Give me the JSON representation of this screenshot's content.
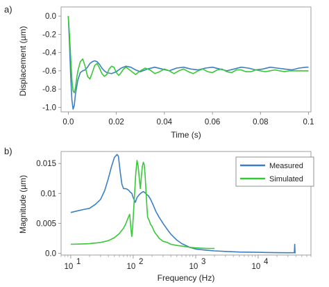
{
  "chart_data": [
    {
      "panel_label": "a)",
      "type": "line",
      "xlabel": "Time (s)",
      "ylabel": "Displacement (µm)",
      "xlim": [
        -0.003,
        0.101
      ],
      "ylim": [
        -1.05,
        0.1
      ],
      "xticks": [
        0.0,
        0.02,
        0.04,
        0.06,
        0.08,
        0.1
      ],
      "xtick_labels": [
        "0.0",
        "0.02",
        "0.04",
        "0.06",
        "0.08",
        "0.1"
      ],
      "yticks": [
        0.0,
        -0.2,
        -0.4,
        -0.6,
        -0.8,
        -1.0
      ],
      "ytick_labels": [
        "0.0",
        "-0.2",
        "-0.4",
        "-0.6",
        "-0.8",
        "-1.0"
      ],
      "grid": false,
      "series": [
        {
          "color": "#3a7fc4",
          "x": [
            0.0,
            0.0005,
            0.001,
            0.0015,
            0.002,
            0.0025,
            0.003,
            0.004,
            0.005,
            0.006,
            0.007,
            0.008,
            0.009,
            0.01,
            0.011,
            0.012,
            0.013,
            0.014,
            0.015,
            0.016,
            0.018,
            0.02,
            0.022,
            0.024,
            0.026,
            0.028,
            0.03,
            0.033,
            0.036,
            0.039,
            0.042,
            0.045,
            0.048,
            0.051,
            0.054,
            0.057,
            0.06,
            0.063,
            0.066,
            0.069,
            0.072,
            0.075,
            0.078,
            0.081,
            0.084,
            0.087,
            0.09,
            0.093,
            0.096,
            0.099,
            0.1
          ],
          "y": [
            0.0,
            -0.3,
            -0.65,
            -0.92,
            -1.02,
            -0.98,
            -0.85,
            -0.7,
            -0.62,
            -0.6,
            -0.59,
            -0.56,
            -0.52,
            -0.5,
            -0.49,
            -0.5,
            -0.53,
            -0.57,
            -0.6,
            -0.62,
            -0.63,
            -0.61,
            -0.57,
            -0.55,
            -0.56,
            -0.59,
            -0.61,
            -0.58,
            -0.56,
            -0.58,
            -0.6,
            -0.57,
            -0.56,
            -0.58,
            -0.59,
            -0.57,
            -0.56,
            -0.58,
            -0.6,
            -0.58,
            -0.56,
            -0.57,
            -0.59,
            -0.58,
            -0.56,
            -0.57,
            -0.58,
            -0.59,
            -0.57,
            -0.56,
            -0.56
          ]
        },
        {
          "color": "#36c836",
          "x": [
            0.0,
            0.0005,
            0.001,
            0.0015,
            0.002,
            0.0025,
            0.003,
            0.0035,
            0.004,
            0.005,
            0.006,
            0.007,
            0.008,
            0.009,
            0.01,
            0.011,
            0.012,
            0.013,
            0.014,
            0.015,
            0.016,
            0.017,
            0.018,
            0.019,
            0.02,
            0.021,
            0.022,
            0.023,
            0.024,
            0.026,
            0.028,
            0.03,
            0.032,
            0.034,
            0.036,
            0.038,
            0.04,
            0.042,
            0.044,
            0.046,
            0.048,
            0.05,
            0.052,
            0.054,
            0.056,
            0.058,
            0.06,
            0.062,
            0.064,
            0.066,
            0.068,
            0.07,
            0.072,
            0.074,
            0.076,
            0.078,
            0.08,
            0.082,
            0.084,
            0.086,
            0.088,
            0.09,
            0.092,
            0.094,
            0.096,
            0.098,
            0.1
          ],
          "y": [
            0.0,
            -0.2,
            -0.45,
            -0.7,
            -0.82,
            -0.84,
            -0.78,
            -0.68,
            -0.6,
            -0.5,
            -0.47,
            -0.55,
            -0.66,
            -0.69,
            -0.62,
            -0.54,
            -0.52,
            -0.57,
            -0.63,
            -0.66,
            -0.64,
            -0.58,
            -0.55,
            -0.56,
            -0.62,
            -0.65,
            -0.62,
            -0.58,
            -0.56,
            -0.6,
            -0.64,
            -0.6,
            -0.57,
            -0.59,
            -0.63,
            -0.61,
            -0.58,
            -0.6,
            -0.63,
            -0.6,
            -0.58,
            -0.61,
            -0.63,
            -0.6,
            -0.58,
            -0.61,
            -0.62,
            -0.59,
            -0.58,
            -0.61,
            -0.62,
            -0.59,
            -0.59,
            -0.61,
            -0.61,
            -0.59,
            -0.6,
            -0.61,
            -0.6,
            -0.59,
            -0.6,
            -0.61,
            -0.6,
            -0.6,
            -0.6,
            -0.6,
            -0.6
          ]
        }
      ]
    },
    {
      "panel_label": "b)",
      "type": "line",
      "xscale": "log",
      "xlabel": "Frequency (Hz)",
      "ylabel": "Magnitude (µm)",
      "xlim": [
        7,
        70000
      ],
      "ylim": [
        -0.0003,
        0.017
      ],
      "xticks": [
        10,
        100,
        1000,
        10000
      ],
      "xtick_labels": [
        "10",
        "10",
        "10",
        "10"
      ],
      "xtick_exponents": [
        "1",
        "2",
        "3",
        "4"
      ],
      "yticks": [
        0.015,
        0.01,
        0.005,
        0.0
      ],
      "ytick_labels": [
        "0.015",
        "0.01",
        "0.005",
        "0.0"
      ],
      "grid": false,
      "legend": {
        "position": "top-right",
        "entries": [
          {
            "label": "Measured",
            "color": "#3a7fc4"
          },
          {
            "label": "Simulated",
            "color": "#36c836"
          }
        ]
      },
      "series": [
        {
          "name": "Measured",
          "color": "#3a7fc4",
          "x": [
            10,
            13,
            16,
            20,
            25,
            30,
            35,
            40,
            45,
            50,
            55,
            58,
            62,
            66,
            70,
            75,
            80,
            85,
            90,
            95,
            100,
            108,
            115,
            125,
            135,
            145,
            155,
            165,
            175,
            190,
            210,
            230,
            260,
            300,
            350,
            400,
            500,
            600,
            800,
            1000,
            1500,
            2000,
            3000,
            5000,
            10000,
            20000,
            30000,
            38000,
            38500,
            39000,
            40000
          ],
          "y": [
            0.0068,
            0.0071,
            0.0073,
            0.0075,
            0.0082,
            0.009,
            0.0105,
            0.0125,
            0.0145,
            0.016,
            0.0165,
            0.0162,
            0.0135,
            0.0115,
            0.0108,
            0.0108,
            0.0107,
            0.0105,
            0.0102,
            0.01,
            0.0093,
            0.0085,
            0.0093,
            0.0098,
            0.0101,
            0.0103,
            0.0101,
            0.0098,
            0.0096,
            0.009,
            0.008,
            0.007,
            0.006,
            0.005,
            0.004,
            0.0032,
            0.0022,
            0.0016,
            0.001,
            0.0007,
            0.0005,
            0.0004,
            0.0003,
            0.0002,
            0.00015,
            0.0001,
            8e-05,
            8e-05,
            0.0015,
            8e-05,
            8e-05
          ]
        },
        {
          "name": "Simulated",
          "color": "#36c836",
          "x": [
            10,
            15,
            20,
            30,
            40,
            50,
            60,
            70,
            75,
            80,
            85,
            88,
            92,
            95,
            98,
            102,
            106,
            110,
            115,
            120,
            125,
            130,
            135,
            140,
            145,
            150,
            155,
            160,
            165,
            170,
            180,
            190,
            200,
            220,
            240,
            260,
            300,
            350,
            400,
            500,
            600,
            800,
            1000,
            1500,
            2000
          ],
          "y": [
            0.0015,
            0.00155,
            0.0016,
            0.0018,
            0.0021,
            0.0026,
            0.0033,
            0.0042,
            0.0048,
            0.0055,
            0.0062,
            0.0065,
            0.004,
            0.0028,
            0.0045,
            0.0075,
            0.0105,
            0.0135,
            0.0155,
            0.0145,
            0.0125,
            0.0108,
            0.0128,
            0.0145,
            0.0152,
            0.0148,
            0.013,
            0.0105,
            0.008,
            0.006,
            0.0055,
            0.0048,
            0.0045,
            0.0035,
            0.003,
            0.0025,
            0.002,
            0.0018,
            0.0015,
            0.0013,
            0.0012,
            0.001,
            0.0009,
            0.0008,
            0.0008
          ]
        }
      ]
    }
  ]
}
